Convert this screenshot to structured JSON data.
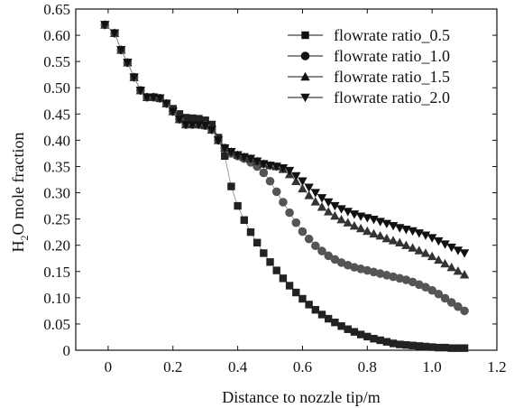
{
  "chart_data": {
    "type": "line",
    "xlabel": "Distance to nozzle tip/m",
    "ylabel_parts": [
      "H",
      "2",
      "O mole fraction"
    ],
    "xlim": [
      -0.1,
      1.2
    ],
    "ylim": [
      0,
      0.65
    ],
    "xticks": [
      "0",
      "0.2",
      "0.4",
      "0.6",
      "0.8",
      "1.0",
      "1.2"
    ],
    "yticks": [
      "0",
      "0.05",
      "0.10",
      "0.15",
      "0.20",
      "0.25",
      "0.30",
      "0.35",
      "0.40",
      "0.45",
      "0.50",
      "0.55",
      "0.60",
      "0.65"
    ],
    "grid": false,
    "legend_position": "top-right",
    "series": [
      {
        "name": "flowrate ratio_0.5",
        "marker": "square",
        "color": "#222222",
        "points": [
          [
            -0.01,
            0.62
          ],
          [
            0.02,
            0.604
          ],
          [
            0.04,
            0.572
          ],
          [
            0.06,
            0.548
          ],
          [
            0.08,
            0.52
          ],
          [
            0.1,
            0.495
          ],
          [
            0.12,
            0.482
          ],
          [
            0.14,
            0.482
          ],
          [
            0.16,
            0.48
          ],
          [
            0.18,
            0.47
          ],
          [
            0.2,
            0.46
          ],
          [
            0.22,
            0.45
          ],
          [
            0.24,
            0.443
          ],
          [
            0.26,
            0.442
          ],
          [
            0.28,
            0.441
          ],
          [
            0.3,
            0.438
          ],
          [
            0.32,
            0.43
          ],
          [
            0.34,
            0.405
          ],
          [
            0.36,
            0.37
          ],
          [
            0.38,
            0.312
          ],
          [
            0.4,
            0.275
          ],
          [
            0.42,
            0.248
          ],
          [
            0.44,
            0.225
          ],
          [
            0.46,
            0.205
          ],
          [
            0.48,
            0.185
          ],
          [
            0.5,
            0.168
          ],
          [
            0.52,
            0.152
          ],
          [
            0.54,
            0.137
          ],
          [
            0.56,
            0.123
          ],
          [
            0.58,
            0.11
          ],
          [
            0.6,
            0.098
          ],
          [
            0.62,
            0.087
          ],
          [
            0.64,
            0.077
          ],
          [
            0.66,
            0.068
          ],
          [
            0.68,
            0.06
          ],
          [
            0.7,
            0.053
          ],
          [
            0.72,
            0.046
          ],
          [
            0.74,
            0.04
          ],
          [
            0.76,
            0.035
          ],
          [
            0.78,
            0.03
          ],
          [
            0.8,
            0.026
          ],
          [
            0.82,
            0.022
          ],
          [
            0.84,
            0.019
          ],
          [
            0.86,
            0.016
          ],
          [
            0.88,
            0.013
          ],
          [
            0.9,
            0.011
          ],
          [
            0.92,
            0.01
          ],
          [
            0.94,
            0.009
          ],
          [
            0.96,
            0.008
          ],
          [
            0.98,
            0.007
          ],
          [
            1.0,
            0.006
          ],
          [
            1.02,
            0.005
          ],
          [
            1.04,
            0.005
          ],
          [
            1.06,
            0.004
          ],
          [
            1.08,
            0.004
          ],
          [
            1.1,
            0.004
          ]
        ]
      },
      {
        "name": "flowrate ratio_1.0",
        "marker": "circle",
        "color": "#555555",
        "points": [
          [
            -0.01,
            0.62
          ],
          [
            0.02,
            0.604
          ],
          [
            0.04,
            0.572
          ],
          [
            0.06,
            0.548
          ],
          [
            0.08,
            0.52
          ],
          [
            0.1,
            0.495
          ],
          [
            0.12,
            0.482
          ],
          [
            0.14,
            0.482
          ],
          [
            0.16,
            0.48
          ],
          [
            0.18,
            0.47
          ],
          [
            0.2,
            0.455
          ],
          [
            0.22,
            0.44
          ],
          [
            0.24,
            0.43
          ],
          [
            0.26,
            0.43
          ],
          [
            0.28,
            0.43
          ],
          [
            0.3,
            0.428
          ],
          [
            0.32,
            0.42
          ],
          [
            0.34,
            0.4
          ],
          [
            0.36,
            0.385
          ],
          [
            0.38,
            0.375
          ],
          [
            0.4,
            0.37
          ],
          [
            0.42,
            0.365
          ],
          [
            0.44,
            0.358
          ],
          [
            0.46,
            0.35
          ],
          [
            0.48,
            0.338
          ],
          [
            0.5,
            0.322
          ],
          [
            0.52,
            0.302
          ],
          [
            0.54,
            0.282
          ],
          [
            0.56,
            0.262
          ],
          [
            0.58,
            0.243
          ],
          [
            0.6,
            0.226
          ],
          [
            0.62,
            0.212
          ],
          [
            0.64,
            0.199
          ],
          [
            0.66,
            0.189
          ],
          [
            0.68,
            0.18
          ],
          [
            0.7,
            0.173
          ],
          [
            0.72,
            0.167
          ],
          [
            0.74,
            0.162
          ],
          [
            0.76,
            0.158
          ],
          [
            0.78,
            0.155
          ],
          [
            0.8,
            0.152
          ],
          [
            0.82,
            0.149
          ],
          [
            0.84,
            0.146
          ],
          [
            0.86,
            0.143
          ],
          [
            0.88,
            0.14
          ],
          [
            0.9,
            0.137
          ],
          [
            0.92,
            0.134
          ],
          [
            0.94,
            0.13
          ],
          [
            0.96,
            0.125
          ],
          [
            0.98,
            0.12
          ],
          [
            1.0,
            0.114
          ],
          [
            1.02,
            0.107
          ],
          [
            1.04,
            0.099
          ],
          [
            1.06,
            0.091
          ],
          [
            1.08,
            0.083
          ],
          [
            1.1,
            0.075
          ]
        ]
      },
      {
        "name": "flowrate ratio_1.5",
        "marker": "triangle-up",
        "color": "#333333",
        "points": [
          [
            -0.01,
            0.62
          ],
          [
            0.02,
            0.604
          ],
          [
            0.04,
            0.572
          ],
          [
            0.06,
            0.548
          ],
          [
            0.08,
            0.52
          ],
          [
            0.1,
            0.495
          ],
          [
            0.12,
            0.482
          ],
          [
            0.14,
            0.482
          ],
          [
            0.16,
            0.48
          ],
          [
            0.18,
            0.47
          ],
          [
            0.2,
            0.455
          ],
          [
            0.22,
            0.44
          ],
          [
            0.24,
            0.43
          ],
          [
            0.26,
            0.43
          ],
          [
            0.28,
            0.43
          ],
          [
            0.3,
            0.428
          ],
          [
            0.32,
            0.42
          ],
          [
            0.34,
            0.4
          ],
          [
            0.36,
            0.385
          ],
          [
            0.38,
            0.378
          ],
          [
            0.4,
            0.372
          ],
          [
            0.42,
            0.368
          ],
          [
            0.44,
            0.365
          ],
          [
            0.46,
            0.36
          ],
          [
            0.48,
            0.355
          ],
          [
            0.5,
            0.352
          ],
          [
            0.52,
            0.35
          ],
          [
            0.54,
            0.345
          ],
          [
            0.56,
            0.335
          ],
          [
            0.58,
            0.322
          ],
          [
            0.6,
            0.308
          ],
          [
            0.62,
            0.295
          ],
          [
            0.64,
            0.283
          ],
          [
            0.66,
            0.273
          ],
          [
            0.68,
            0.264
          ],
          [
            0.7,
            0.256
          ],
          [
            0.72,
            0.249
          ],
          [
            0.74,
            0.243
          ],
          [
            0.76,
            0.237
          ],
          [
            0.78,
            0.232
          ],
          [
            0.8,
            0.227
          ],
          [
            0.82,
            0.222
          ],
          [
            0.84,
            0.218
          ],
          [
            0.86,
            0.213
          ],
          [
            0.88,
            0.209
          ],
          [
            0.9,
            0.205
          ],
          [
            0.92,
            0.2
          ],
          [
            0.94,
            0.195
          ],
          [
            0.96,
            0.19
          ],
          [
            0.98,
            0.185
          ],
          [
            1.0,
            0.179
          ],
          [
            1.02,
            0.172
          ],
          [
            1.04,
            0.165
          ],
          [
            1.06,
            0.158
          ],
          [
            1.08,
            0.151
          ],
          [
            1.1,
            0.144
          ]
        ]
      },
      {
        "name": "flowrate ratio_2.0",
        "marker": "triangle-down",
        "color": "#111111",
        "points": [
          [
            -0.01,
            0.62
          ],
          [
            0.02,
            0.604
          ],
          [
            0.04,
            0.572
          ],
          [
            0.06,
            0.548
          ],
          [
            0.08,
            0.52
          ],
          [
            0.1,
            0.495
          ],
          [
            0.12,
            0.482
          ],
          [
            0.14,
            0.482
          ],
          [
            0.16,
            0.48
          ],
          [
            0.18,
            0.47
          ],
          [
            0.2,
            0.455
          ],
          [
            0.22,
            0.44
          ],
          [
            0.24,
            0.43
          ],
          [
            0.26,
            0.43
          ],
          [
            0.28,
            0.43
          ],
          [
            0.3,
            0.428
          ],
          [
            0.32,
            0.42
          ],
          [
            0.34,
            0.4
          ],
          [
            0.36,
            0.385
          ],
          [
            0.38,
            0.378
          ],
          [
            0.4,
            0.372
          ],
          [
            0.42,
            0.368
          ],
          [
            0.44,
            0.365
          ],
          [
            0.46,
            0.36
          ],
          [
            0.48,
            0.355
          ],
          [
            0.5,
            0.352
          ],
          [
            0.52,
            0.35
          ],
          [
            0.54,
            0.347
          ],
          [
            0.56,
            0.342
          ],
          [
            0.58,
            0.332
          ],
          [
            0.6,
            0.322
          ],
          [
            0.62,
            0.31
          ],
          [
            0.64,
            0.3
          ],
          [
            0.66,
            0.29
          ],
          [
            0.68,
            0.282
          ],
          [
            0.7,
            0.275
          ],
          [
            0.72,
            0.269
          ],
          [
            0.74,
            0.264
          ],
          [
            0.76,
            0.259
          ],
          [
            0.78,
            0.255
          ],
          [
            0.8,
            0.252
          ],
          [
            0.82,
            0.249
          ],
          [
            0.84,
            0.245
          ],
          [
            0.86,
            0.241
          ],
          [
            0.88,
            0.237
          ],
          [
            0.9,
            0.233
          ],
          [
            0.92,
            0.23
          ],
          [
            0.94,
            0.227
          ],
          [
            0.96,
            0.223
          ],
          [
            0.98,
            0.219
          ],
          [
            1.0,
            0.214
          ],
          [
            1.02,
            0.208
          ],
          [
            1.04,
            0.202
          ],
          [
            1.06,
            0.196
          ],
          [
            1.08,
            0.19
          ],
          [
            1.1,
            0.185
          ]
        ]
      }
    ]
  }
}
